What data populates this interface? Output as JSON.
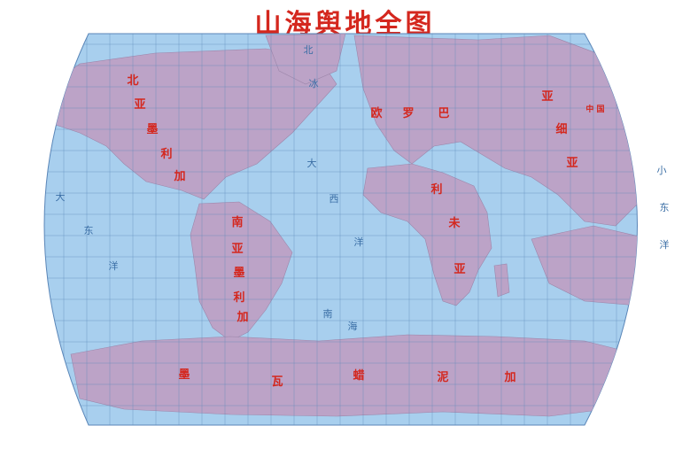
{
  "title": "山海舆地全图",
  "colors": {
    "ocean": "#a8cfee",
    "land": "#bca3c7",
    "graticule": "#5a86b8",
    "label": "#d4271e",
    "ocean_label": "#3a6ea5"
  },
  "continents": [
    {
      "name": "north-america",
      "chars": [
        "北",
        "亚",
        "墨",
        "利",
        "加"
      ]
    },
    {
      "name": "south-america",
      "chars": [
        "南",
        "亚",
        "墨",
        "利",
        "加"
      ]
    },
    {
      "name": "europe",
      "chars": [
        "欧",
        "罗",
        "巴"
      ]
    },
    {
      "name": "africa",
      "chars": [
        "利",
        "未",
        "亚"
      ]
    },
    {
      "name": "asia",
      "chars": [
        "亚",
        "细",
        "亚"
      ]
    },
    {
      "name": "antarctica",
      "chars": [
        "墨",
        "瓦",
        "蜡",
        "泥",
        "加"
      ]
    }
  ],
  "country_labels": [
    {
      "name": "china",
      "text": "中 国"
    }
  ],
  "ocean_labels": [
    {
      "name": "atlantic",
      "chars": [
        "大",
        "西",
        "洋"
      ]
    },
    {
      "name": "north-ocean",
      "chars": [
        "北",
        "冰"
      ]
    },
    {
      "name": "pacific-east",
      "chars": [
        "小",
        "东",
        "洋"
      ]
    },
    {
      "name": "pacific-west",
      "chars": [
        "大",
        "东",
        "洋"
      ]
    },
    {
      "name": "south-ocean",
      "chars": [
        "南",
        "海"
      ]
    }
  ]
}
